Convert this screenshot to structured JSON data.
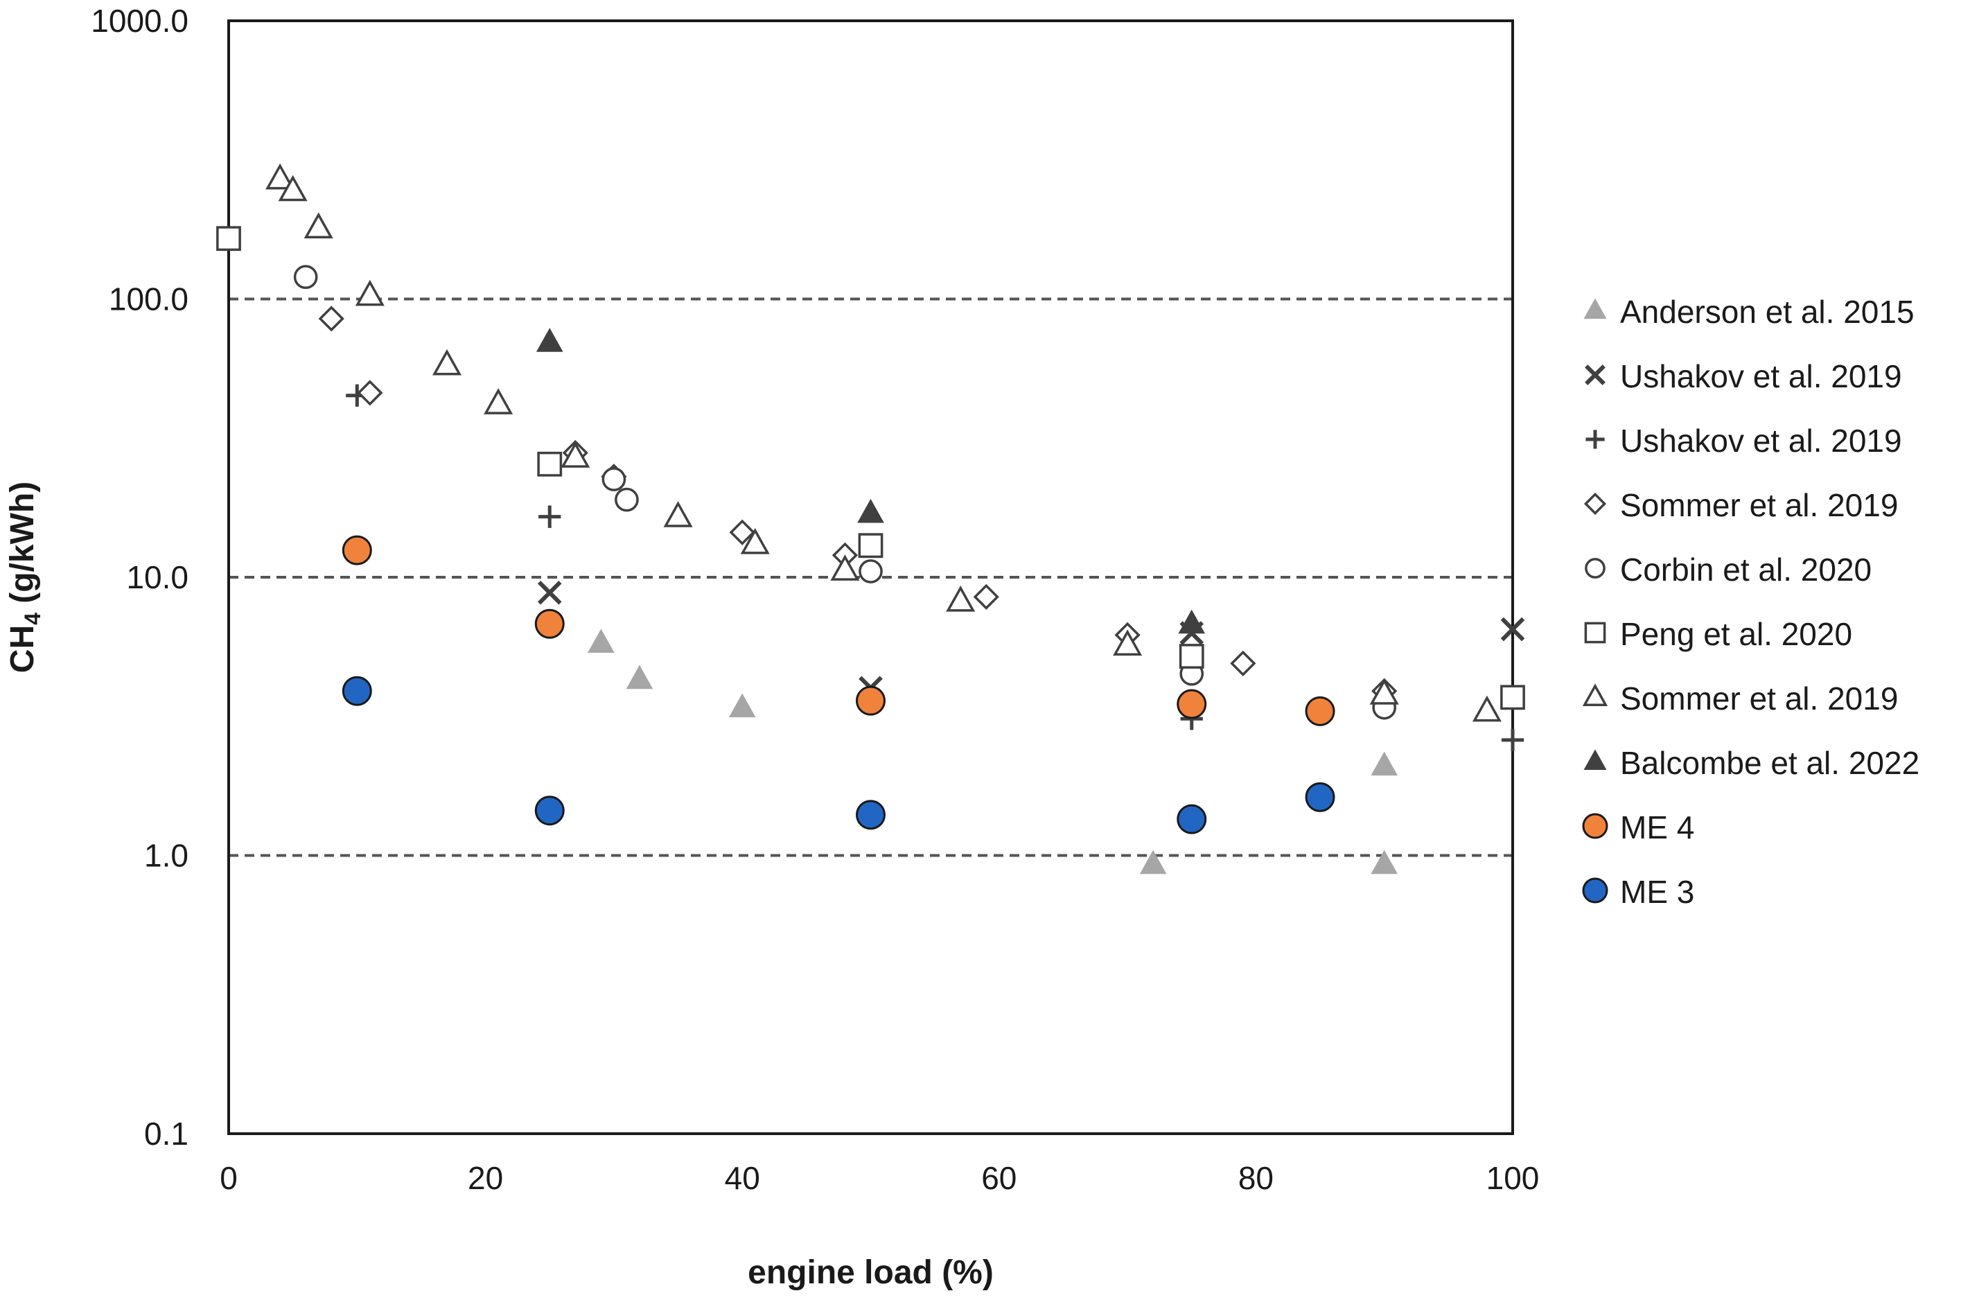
{
  "chart_data": {
    "type": "scatter",
    "title": "",
    "xlabel": "engine load (%)",
    "ylabel_main": "CH",
    "ylabel_sub": "4",
    "ylabel_tail": " (g/kWh)",
    "xlim": [
      0,
      100
    ],
    "ylim": [
      0.1,
      1000
    ],
    "yscale": "log",
    "x_ticks": [
      0,
      20,
      40,
      60,
      80,
      100
    ],
    "x_tick_labels": [
      "0",
      "20",
      "40",
      "60",
      "80",
      "100"
    ],
    "y_ticks": [
      0.1,
      1,
      10,
      100,
      1000
    ],
    "y_tick_labels": [
      "0.1",
      "1.0",
      "10.0",
      "100.0",
      "1000.0"
    ],
    "gridlines_y": [
      1,
      10,
      100
    ],
    "grid": "dashed horizontal at 1, 10, 100",
    "legend_position": "right",
    "series": [
      {
        "name": "Anderson et al. 2015",
        "marker": "triangle-filled",
        "color": "#a6a6a6",
        "points": [
          [
            29,
            5.8
          ],
          [
            32,
            4.3
          ],
          [
            40,
            3.4
          ],
          [
            72,
            0.93
          ],
          [
            90,
            2.1
          ],
          [
            90,
            0.93
          ]
        ]
      },
      {
        "name": "Ushakov et al. 2019",
        "marker": "x",
        "color": "#404040",
        "points": [
          [
            25,
            8.8
          ],
          [
            50,
            4.0
          ],
          [
            75,
            6.3
          ],
          [
            100,
            6.5
          ]
        ]
      },
      {
        "name": "Ushakov et al. 2019",
        "marker": "plus",
        "color": "#404040",
        "points": [
          [
            10,
            45
          ],
          [
            25,
            16.5
          ],
          [
            75,
            3.1
          ],
          [
            100,
            2.6
          ]
        ]
      },
      {
        "name": "Sommer et al. 2019",
        "marker": "diamond-open",
        "color": "#404040",
        "points": [
          [
            8,
            85
          ],
          [
            11,
            46
          ],
          [
            27,
            28
          ],
          [
            30,
            23
          ],
          [
            40,
            14.5
          ],
          [
            48,
            12
          ],
          [
            59,
            8.5
          ],
          [
            70,
            6.2
          ],
          [
            79,
            4.9
          ],
          [
            90,
            3.9
          ]
        ]
      },
      {
        "name": "Corbin et al. 2020",
        "marker": "circle-open",
        "color": "#404040",
        "points": [
          [
            6,
            120
          ],
          [
            30,
            22.5
          ],
          [
            31,
            19
          ],
          [
            50,
            10.5
          ],
          [
            75,
            4.5
          ],
          [
            90,
            3.4
          ]
        ]
      },
      {
        "name": "Peng et al. 2020",
        "marker": "square-open",
        "color": "#404040",
        "points": [
          [
            0,
            165
          ],
          [
            25,
            25.5
          ],
          [
            50,
            13
          ],
          [
            75,
            5.2
          ],
          [
            100,
            3.7
          ]
        ]
      },
      {
        "name": "Sommer et al. 2019",
        "marker": "triangle-open",
        "color": "#404040",
        "points": [
          [
            4,
            270
          ],
          [
            5,
            245
          ],
          [
            7,
            180
          ],
          [
            11,
            103
          ],
          [
            17,
            58
          ],
          [
            21,
            42
          ],
          [
            27,
            27
          ],
          [
            35,
            16.5
          ],
          [
            41,
            13.2
          ],
          [
            48,
            10.6
          ],
          [
            57,
            8.2
          ],
          [
            70,
            5.7
          ],
          [
            90,
            3.8
          ],
          [
            98,
            3.3
          ]
        ]
      },
      {
        "name": "Balcombe et al. 2022",
        "marker": "triangle-filled",
        "color": "#404040",
        "points": [
          [
            25,
            70
          ],
          [
            50,
            17
          ],
          [
            75,
            6.8
          ]
        ]
      },
      {
        "name": "ME 4",
        "marker": "circle-filled",
        "color": "#f0823c",
        "points": [
          [
            10,
            12.5
          ],
          [
            25,
            6.8
          ],
          [
            50,
            3.6
          ],
          [
            75,
            3.5
          ],
          [
            85,
            3.3
          ]
        ]
      },
      {
        "name": "ME 3",
        "marker": "circle-filled",
        "color": "#2266c4",
        "points": [
          [
            10,
            3.9
          ],
          [
            25,
            1.45
          ],
          [
            50,
            1.4
          ],
          [
            75,
            1.35
          ],
          [
            85,
            1.62
          ]
        ]
      }
    ]
  }
}
